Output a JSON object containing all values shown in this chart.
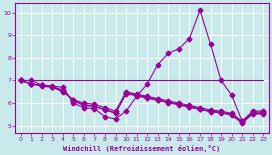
{
  "xlabel": "Windchill (Refroidissement éolien,°C)",
  "bg_color": "#c8eaea",
  "grid_color": "#ffffff",
  "line_color": "#990099",
  "xlim": [
    -0.5,
    23.5
  ],
  "ylim": [
    4.7,
    10.4
  ],
  "yticks": [
    5,
    6,
    7,
    8,
    9,
    10
  ],
  "xticks": [
    0,
    1,
    2,
    3,
    4,
    5,
    6,
    7,
    8,
    9,
    10,
    11,
    12,
    13,
    14,
    15,
    16,
    17,
    18,
    19,
    20,
    21,
    22,
    23
  ],
  "main_curve_x": [
    0,
    1,
    2,
    3,
    4,
    5,
    6,
    7,
    8,
    9,
    10,
    11,
    12,
    13,
    14,
    15,
    16,
    17,
    18,
    19,
    20,
    21,
    22,
    23
  ],
  "main_curve_y": [
    7.0,
    7.0,
    6.8,
    6.75,
    6.7,
    6.0,
    5.8,
    5.75,
    5.4,
    5.3,
    5.65,
    6.3,
    6.85,
    7.7,
    8.2,
    8.4,
    8.85,
    10.1,
    8.6,
    7.0,
    6.35,
    5.2,
    5.65,
    5.65
  ],
  "hline_x": [
    0,
    23
  ],
  "hline_y": [
    7.0,
    7.0
  ],
  "decline1_x": [
    0,
    1,
    2,
    3,
    4,
    5,
    6,
    7,
    8,
    9,
    10,
    11,
    12,
    13,
    14,
    15,
    16,
    17,
    18,
    19,
    20,
    21,
    22,
    23
  ],
  "decline1_y": [
    7.0,
    6.85,
    6.75,
    6.7,
    6.5,
    6.15,
    6.0,
    5.95,
    5.8,
    5.65,
    6.5,
    6.4,
    6.3,
    6.2,
    6.1,
    6.0,
    5.9,
    5.8,
    5.7,
    5.65,
    5.55,
    5.2,
    5.6,
    5.6
  ],
  "decline2_x": [
    0,
    1,
    2,
    3,
    4,
    5,
    6,
    7,
    8,
    9,
    10,
    11,
    12,
    13,
    14,
    15,
    16,
    17,
    18,
    19,
    20,
    21,
    22,
    23
  ],
  "decline2_y": [
    7.0,
    6.85,
    6.78,
    6.72,
    6.55,
    6.1,
    5.9,
    5.85,
    5.7,
    5.55,
    6.45,
    6.35,
    6.25,
    6.15,
    6.05,
    5.95,
    5.85,
    5.75,
    5.65,
    5.6,
    5.5,
    5.15,
    5.55,
    5.55
  ],
  "decline3_x": [
    0,
    1,
    2,
    3,
    4,
    5,
    6,
    7,
    8,
    9,
    10,
    11,
    12,
    13,
    14,
    15,
    16,
    17,
    18,
    19,
    20,
    21,
    22,
    23
  ],
  "decline3_y": [
    7.0,
    6.85,
    6.8,
    6.73,
    6.57,
    6.12,
    5.92,
    5.87,
    5.72,
    5.57,
    6.42,
    6.32,
    6.22,
    6.12,
    6.02,
    5.92,
    5.82,
    5.72,
    5.62,
    5.57,
    5.47,
    5.12,
    5.52,
    5.52
  ],
  "marker": "D",
  "markersize": 2.5,
  "linewidth": 0.8
}
